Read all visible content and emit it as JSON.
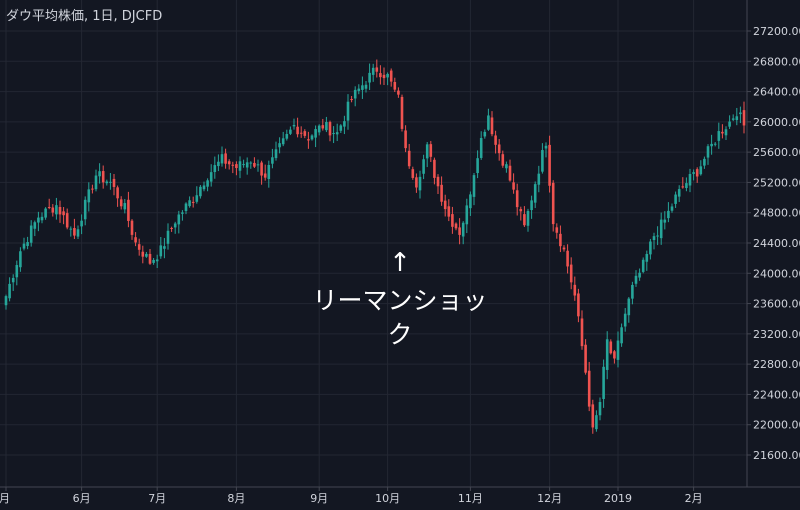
{
  "header": {
    "title": "ダウ平均株価, 1日, DJCFD"
  },
  "annotation": {
    "arrow": "↑",
    "label": "リーマンショック"
  },
  "colors": {
    "background": "#131722",
    "grid": "#232733",
    "up": "#26a69a",
    "down": "#ef5350",
    "text": "#d1d4dc",
    "annotation": "#ffffff"
  },
  "chart_data": {
    "type": "candlestick",
    "title": "ダウ平均株価, 1日, DJCFD",
    "y_ticks": [
      "27200.00",
      "26800.00",
      "26400.00",
      "26000.00",
      "25600.00",
      "25200.00",
      "24800.00",
      "24400.00",
      "24000.00",
      "23600.00",
      "23200.00",
      "22800.00",
      "22400.00",
      "22000.00",
      "21600.00"
    ],
    "ylim": [
      21400,
      27400
    ],
    "x_ticks": [
      {
        "label": "月",
        "index": 0
      },
      {
        "label": "6月",
        "index": 21
      },
      {
        "label": "7月",
        "index": 42
      },
      {
        "label": "8月",
        "index": 64
      },
      {
        "label": "9月",
        "index": 87
      },
      {
        "label": "10月",
        "index": 106
      },
      {
        "label": "11月",
        "index": 129
      },
      {
        "label": "12月",
        "index": 151
      },
      {
        "label": "2019",
        "index": 170
      },
      {
        "label": "2月",
        "index": 191
      }
    ],
    "grid": true,
    "keypoints": [
      [
        0,
        23700
      ],
      [
        4,
        24300
      ],
      [
        9,
        24750
      ],
      [
        14,
        24900
      ],
      [
        19,
        24500
      ],
      [
        25,
        25300
      ],
      [
        29,
        25200
      ],
      [
        33,
        24850
      ],
      [
        36,
        24400
      ],
      [
        40,
        24150
      ],
      [
        43,
        24300
      ],
      [
        47,
        24700
      ],
      [
        52,
        25000
      ],
      [
        56,
        25300
      ],
      [
        60,
        25500
      ],
      [
        64,
        25400
      ],
      [
        68,
        25500
      ],
      [
        72,
        25300
      ],
      [
        76,
        25650
      ],
      [
        80,
        25950
      ],
      [
        84,
        25800
      ],
      [
        88,
        25950
      ],
      [
        92,
        25850
      ],
      [
        96,
        26300
      ],
      [
        100,
        26550
      ],
      [
        103,
        26700
      ],
      [
        106,
        26600
      ],
      [
        109,
        26300
      ],
      [
        111,
        25600
      ],
      [
        114,
        25200
      ],
      [
        117,
        25650
      ],
      [
        120,
        25150
      ],
      [
        123,
        24750
      ],
      [
        126,
        24550
      ],
      [
        128,
        24850
      ],
      [
        131,
        25600
      ],
      [
        134,
        26100
      ],
      [
        136,
        25700
      ],
      [
        139,
        25400
      ],
      [
        142,
        24900
      ],
      [
        144,
        24600
      ],
      [
        147,
        25200
      ],
      [
        150,
        25750
      ],
      [
        152,
        24700
      ],
      [
        155,
        24300
      ],
      [
        158,
        23700
      ],
      [
        161,
        22700
      ],
      [
        163,
        21900
      ],
      [
        165,
        22300
      ],
      [
        167,
        23100
      ],
      [
        169,
        22800
      ],
      [
        171,
        23300
      ],
      [
        174,
        23800
      ],
      [
        177,
        24100
      ],
      [
        180,
        24500
      ],
      [
        183,
        24700
      ],
      [
        186,
        25000
      ],
      [
        189,
        25200
      ],
      [
        192,
        25350
      ],
      [
        195,
        25600
      ],
      [
        198,
        25850
      ],
      [
        201,
        26000
      ],
      [
        203,
        26150
      ],
      [
        205,
        25950
      ]
    ]
  }
}
